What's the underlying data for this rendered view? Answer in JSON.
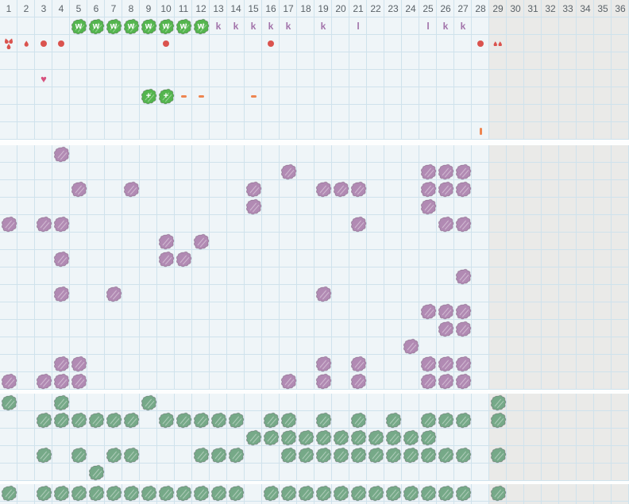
{
  "columns": {
    "labels": [
      "1",
      "2",
      "3",
      "4",
      "5",
      "6",
      "7",
      "8",
      "9",
      "10",
      "11",
      "12",
      "13",
      "14",
      "15",
      "16",
      "17",
      "18",
      "19",
      "20",
      "21",
      "22",
      "23",
      "24",
      "25",
      "26",
      "27",
      "28",
      "29",
      "30",
      "31",
      "32",
      "33",
      "34",
      "35",
      "36"
    ],
    "shaded_from_column": 29
  },
  "colors": {
    "grid_background": "#eff5f8",
    "shaded_background": "#eaeae8",
    "grid_line": "#cfe2ec",
    "header_text": "#5a6268",
    "bright_green": "#54b54e",
    "sage_green": "#76a988",
    "purple_blob": "#b18ab3",
    "purple_text": "#a273aa",
    "red": "#da534e",
    "pink_heart": "#d7517e",
    "orange": "#ee8550"
  },
  "icons": {
    "letter_blob": "scribble-blob-letter-icon",
    "blob": "scribble-blob-icon",
    "letter": "letter-mark",
    "dot": "dot-icon",
    "drop": "drop-icon",
    "drops2": "double-drop-icon",
    "drops3": "triple-drop-icon",
    "heart": "heart-icon",
    "dash": "dash-icon",
    "vbar": "vertical-bar-icon"
  },
  "glyphs": {
    "heart": "♥"
  },
  "sections": [
    {
      "name": "header-and-events",
      "rows": 8,
      "header_row": 0,
      "marks": [
        {
          "row": 1,
          "col": 5,
          "type": "letter_blob",
          "color": "bright_green",
          "letter": "w"
        },
        {
          "row": 1,
          "col": 6,
          "type": "letter_blob",
          "color": "bright_green",
          "letter": "w"
        },
        {
          "row": 1,
          "col": 7,
          "type": "letter_blob",
          "color": "bright_green",
          "letter": "w"
        },
        {
          "row": 1,
          "col": 8,
          "type": "letter_blob",
          "color": "bright_green",
          "letter": "w"
        },
        {
          "row": 1,
          "col": 9,
          "type": "letter_blob",
          "color": "bright_green",
          "letter": "w"
        },
        {
          "row": 1,
          "col": 10,
          "type": "letter_blob",
          "color": "bright_green",
          "letter": "w"
        },
        {
          "row": 1,
          "col": 11,
          "type": "letter_blob",
          "color": "bright_green",
          "letter": "w"
        },
        {
          "row": 1,
          "col": 12,
          "type": "letter_blob",
          "color": "bright_green",
          "letter": "w"
        },
        {
          "row": 1,
          "col": 13,
          "type": "letter",
          "letter": "k"
        },
        {
          "row": 1,
          "col": 14,
          "type": "letter",
          "letter": "k"
        },
        {
          "row": 1,
          "col": 15,
          "type": "letter",
          "letter": "k"
        },
        {
          "row": 1,
          "col": 16,
          "type": "letter",
          "letter": "k"
        },
        {
          "row": 1,
          "col": 17,
          "type": "letter",
          "letter": "k"
        },
        {
          "row": 1,
          "col": 19,
          "type": "letter",
          "letter": "k"
        },
        {
          "row": 1,
          "col": 21,
          "type": "letter",
          "letter": "l"
        },
        {
          "row": 1,
          "col": 25,
          "type": "letter",
          "letter": "l"
        },
        {
          "row": 1,
          "col": 26,
          "type": "letter",
          "letter": "k"
        },
        {
          "row": 1,
          "col": 27,
          "type": "letter",
          "letter": "k"
        },
        {
          "row": 2,
          "col": 1,
          "type": "drops3"
        },
        {
          "row": 2,
          "col": 2,
          "type": "drop"
        },
        {
          "row": 2,
          "col": 3,
          "type": "dot"
        },
        {
          "row": 2,
          "col": 4,
          "type": "dot"
        },
        {
          "row": 2,
          "col": 10,
          "type": "dot"
        },
        {
          "row": 2,
          "col": 16,
          "type": "dot"
        },
        {
          "row": 2,
          "col": 28,
          "type": "dot"
        },
        {
          "row": 2,
          "col": 29,
          "type": "drops2"
        },
        {
          "row": 4,
          "col": 3,
          "type": "heart"
        },
        {
          "row": 5,
          "col": 9,
          "type": "letter_blob",
          "color": "bright_green",
          "letter": "+"
        },
        {
          "row": 5,
          "col": 10,
          "type": "letter_blob",
          "color": "bright_green",
          "letter": "+"
        },
        {
          "row": 5,
          "col": 11,
          "type": "dash"
        },
        {
          "row": 5,
          "col": 12,
          "type": "dash"
        },
        {
          "row": 5,
          "col": 15,
          "type": "dash"
        },
        {
          "row": 7,
          "col": 28,
          "type": "vbar"
        }
      ]
    },
    {
      "name": "purple-tracker",
      "rows": 14,
      "blob_color": "purple_blob",
      "blob_rows": [
        [
          4
        ],
        [
          17,
          25,
          26,
          27
        ],
        [
          5,
          8,
          15,
          19,
          20,
          21,
          25,
          26,
          27
        ],
        [
          15,
          25
        ],
        [
          1,
          3,
          4,
          21,
          26,
          27
        ],
        [
          10,
          12
        ],
        [
          4,
          10,
          11
        ],
        [
          27
        ],
        [
          4,
          7,
          19
        ],
        [
          25,
          26,
          27
        ],
        [
          26,
          27
        ],
        [
          24
        ],
        [
          4,
          5,
          19,
          21,
          25,
          26,
          27
        ],
        [
          1,
          3,
          4,
          5,
          17,
          19,
          21,
          25,
          26,
          27
        ]
      ]
    },
    {
      "name": "green-tracker",
      "rows": 5,
      "blob_color": "sage_green",
      "blob_rows": [
        [
          1,
          4,
          9,
          29
        ],
        [
          3,
          4,
          5,
          6,
          7,
          8,
          10,
          11,
          12,
          13,
          14,
          16,
          17,
          19,
          21,
          23,
          25,
          26,
          27,
          29
        ],
        [
          15,
          16,
          17,
          18,
          19,
          20,
          21,
          22,
          23,
          24,
          25
        ],
        [
          3,
          5,
          7,
          8,
          12,
          13,
          14,
          17,
          18,
          19,
          20,
          21,
          22,
          23,
          24,
          25,
          26,
          27,
          29
        ],
        [
          6
        ]
      ]
    },
    {
      "name": "green-tracker-2",
      "rows": 2,
      "blob_color": "sage_green",
      "blob_rows": [
        [
          1,
          3,
          4,
          5,
          6,
          7,
          8,
          9,
          10,
          11,
          12,
          13,
          14,
          16,
          17,
          18,
          19,
          20,
          21,
          22,
          23,
          24,
          25,
          26,
          27,
          29
        ],
        []
      ]
    }
  ]
}
